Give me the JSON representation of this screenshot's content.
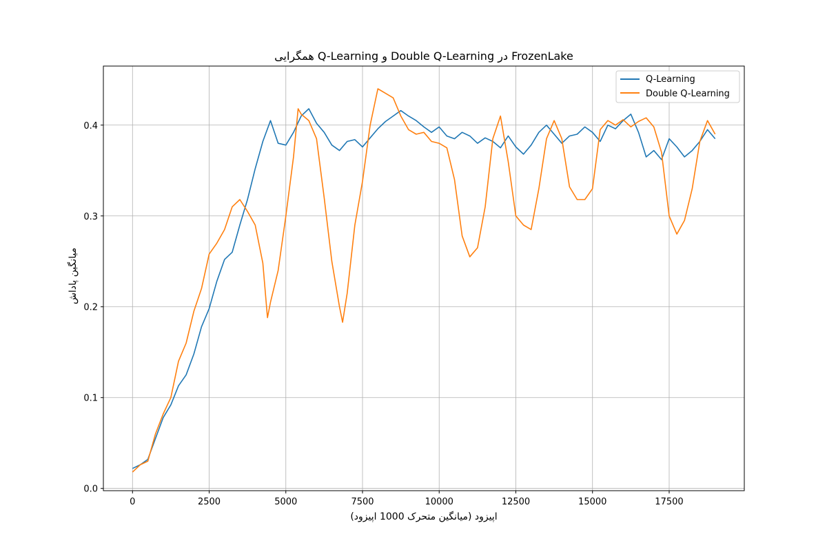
{
  "chart_data": {
    "type": "line",
    "title": "همگرایی Q-Learning و Double Q-Learning در FrozenLake",
    "xlabel": "اپیزود (میانگین متحرک 1000 اپیزود)",
    "ylabel": "میانگین پاداش",
    "xlim": [
      -950,
      19950
    ],
    "ylim": [
      -0.0025,
      0.465
    ],
    "xticks": [
      0,
      2500,
      5000,
      7500,
      10000,
      12500,
      15000,
      17500
    ],
    "xtick_labels": [
      "0",
      "2500",
      "5000",
      "7500",
      "10000",
      "12500",
      "15000",
      "17500"
    ],
    "yticks": [
      0.0,
      0.1,
      0.2,
      0.3,
      0.4
    ],
    "ytick_labels": [
      "0.0",
      "0.1",
      "0.2",
      "0.3",
      "0.4"
    ],
    "grid": true,
    "legend_position": "top-right",
    "series": [
      {
        "name": "Q-Learning",
        "color": "#1f77b4",
        "x": [
          0,
          250,
          500,
          750,
          1000,
          1250,
          1500,
          1750,
          2000,
          2250,
          2500,
          2750,
          3000,
          3250,
          3500,
          3750,
          4000,
          4250,
          4500,
          4750,
          5000,
          5250,
          5500,
          5750,
          6000,
          6250,
          6500,
          6750,
          7000,
          7250,
          7500,
          7750,
          8000,
          8250,
          8500,
          8750,
          9000,
          9250,
          9500,
          9750,
          10000,
          10250,
          10500,
          10750,
          11000,
          11250,
          11500,
          11750,
          12000,
          12250,
          12500,
          12750,
          13000,
          13250,
          13500,
          13750,
          14000,
          14250,
          14500,
          14750,
          15000,
          15250,
          15500,
          15750,
          16000,
          16250,
          16500,
          16750,
          17000,
          17250,
          17500,
          17750,
          18000,
          18250,
          18500,
          18750,
          19000
        ],
        "y": [
          0.022,
          0.026,
          0.032,
          0.055,
          0.078,
          0.092,
          0.113,
          0.125,
          0.148,
          0.178,
          0.198,
          0.228,
          0.252,
          0.26,
          0.29,
          0.318,
          0.352,
          0.382,
          0.405,
          0.38,
          0.378,
          0.392,
          0.41,
          0.418,
          0.402,
          0.392,
          0.378,
          0.372,
          0.382,
          0.384,
          0.376,
          0.386,
          0.396,
          0.404,
          0.41,
          0.416,
          0.41,
          0.405,
          0.398,
          0.392,
          0.398,
          0.388,
          0.385,
          0.392,
          0.388,
          0.38,
          0.386,
          0.382,
          0.375,
          0.388,
          0.376,
          0.368,
          0.378,
          0.392,
          0.4,
          0.39,
          0.38,
          0.388,
          0.39,
          0.398,
          0.392,
          0.382,
          0.4,
          0.396,
          0.405,
          0.412,
          0.392,
          0.365,
          0.372,
          0.362,
          0.385,
          0.376,
          0.365,
          0.372,
          0.382,
          0.395,
          0.385
        ]
      },
      {
        "name": "Double Q-Learning",
        "color": "#ff7f0e",
        "x": [
          0,
          250,
          500,
          750,
          1000,
          1250,
          1500,
          1750,
          2000,
          2250,
          2500,
          2750,
          3000,
          3250,
          3500,
          3750,
          4000,
          4250,
          4400,
          4500,
          4750,
          5000,
          5250,
          5400,
          5500,
          5750,
          6000,
          6250,
          6500,
          6750,
          6850,
          7000,
          7250,
          7500,
          7750,
          8000,
          8250,
          8500,
          8750,
          9000,
          9250,
          9500,
          9750,
          10000,
          10250,
          10500,
          10750,
          11000,
          11250,
          11500,
          11750,
          12000,
          12250,
          12500,
          12750,
          13000,
          13250,
          13500,
          13750,
          14000,
          14250,
          14500,
          14750,
          15000,
          15250,
          15500,
          15750,
          16000,
          16250,
          16500,
          16750,
          17000,
          17250,
          17500,
          17750,
          18000,
          18250,
          18500,
          18750,
          19000
        ],
        "y": [
          0.018,
          0.026,
          0.03,
          0.06,
          0.082,
          0.1,
          0.14,
          0.16,
          0.195,
          0.22,
          0.258,
          0.27,
          0.285,
          0.31,
          0.318,
          0.305,
          0.29,
          0.248,
          0.188,
          0.205,
          0.24,
          0.3,
          0.365,
          0.418,
          0.412,
          0.405,
          0.385,
          0.32,
          0.25,
          0.2,
          0.183,
          0.215,
          0.29,
          0.338,
          0.4,
          0.44,
          0.435,
          0.43,
          0.41,
          0.395,
          0.39,
          0.392,
          0.382,
          0.38,
          0.375,
          0.34,
          0.278,
          0.255,
          0.265,
          0.31,
          0.385,
          0.41,
          0.36,
          0.3,
          0.29,
          0.285,
          0.33,
          0.385,
          0.405,
          0.385,
          0.332,
          0.318,
          0.318,
          0.33,
          0.395,
          0.405,
          0.4,
          0.406,
          0.398,
          0.404,
          0.408,
          0.398,
          0.37,
          0.3,
          0.28,
          0.295,
          0.33,
          0.382,
          0.405,
          0.39
        ]
      }
    ]
  }
}
